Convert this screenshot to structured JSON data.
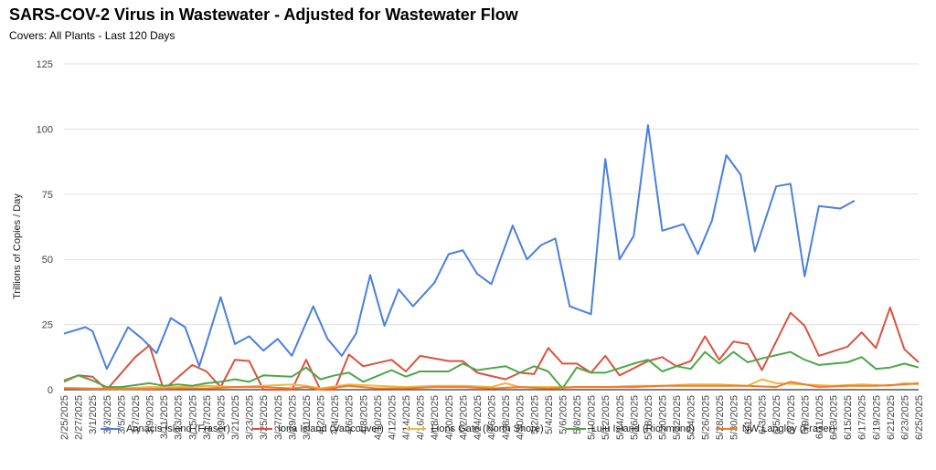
{
  "header": {
    "title": "SARS-COV-2 Virus in Wastewater - Adjusted for Wastewater Flow",
    "subtitle": "Covers: All Plants - Last 120 Days"
  },
  "chart_data": {
    "type": "line",
    "ylabel": "Trillions of Copies / Day",
    "ylim": [
      0,
      125
    ],
    "yticks": [
      0,
      25,
      50,
      75,
      100,
      125
    ],
    "grid": "horizontal",
    "legend_position": "bottom",
    "x": [
      "2/25/2025",
      "2/27/2025",
      "3/1/2025",
      "3/3/2025",
      "3/5/2025",
      "3/7/2025",
      "3/9/2025",
      "3/11/2025",
      "3/13/2025",
      "3/15/2025",
      "3/17/2025",
      "3/19/2025",
      "3/21/2025",
      "3/23/2025",
      "3/25/2025",
      "3/27/2025",
      "3/29/2025",
      "3/31/2025",
      "4/2/2025",
      "4/4/2025",
      "4/6/2025",
      "4/8/2025",
      "4/10/2025",
      "4/12/2025",
      "4/14/2025",
      "4/16/2025",
      "4/18/2025",
      "4/20/2025",
      "4/22/2025",
      "4/24/2025",
      "4/26/2025",
      "4/28/2025",
      "4/30/2025",
      "5/2/2025",
      "5/4/2025",
      "5/6/2025",
      "5/8/2025",
      "5/10/2025",
      "5/12/2025",
      "5/14/2025",
      "5/16/2025",
      "5/18/2025",
      "5/20/2025",
      "5/22/2025",
      "5/24/2025",
      "5/26/2025",
      "5/28/2025",
      "5/30/2025",
      "6/1/2025",
      "6/3/2025",
      "6/5/2025",
      "6/7/2025",
      "6/9/2025",
      "6/11/2025",
      "6/13/2025",
      "6/15/2025",
      "6/17/2025",
      "6/19/2025",
      "6/21/2025",
      "6/23/2025",
      "6/25/2025"
    ],
    "series": [
      {
        "name": "Annacis Island (Fraser)",
        "color": "#4a7fe0",
        "points": [
          [
            "2/25/2025",
            21.5
          ],
          [
            "2/28/2025",
            24
          ],
          [
            "3/1/2025",
            22.5
          ],
          [
            "3/3/2025",
            8
          ],
          [
            "3/6/2025",
            24
          ],
          [
            "3/8/2025",
            19.5
          ],
          [
            "3/10/2025",
            14
          ],
          [
            "3/12/2025",
            27.5
          ],
          [
            "3/14/2025",
            24
          ],
          [
            "3/16/2025",
            9
          ],
          [
            "3/19/2025",
            35.5
          ],
          [
            "3/21/2025",
            17.5
          ],
          [
            "3/23/2025",
            20.5
          ],
          [
            "3/25/2025",
            15
          ],
          [
            "3/27/2025",
            19.5
          ],
          [
            "3/29/2025",
            13
          ],
          [
            "4/1/2025",
            32
          ],
          [
            "4/3/2025",
            19.5
          ],
          [
            "4/5/2025",
            13
          ],
          [
            "4/7/2025",
            21.5
          ],
          [
            "4/9/2025",
            44
          ],
          [
            "4/11/2025",
            24.5
          ],
          [
            "4/13/2025",
            38.5
          ],
          [
            "4/15/2025",
            32
          ],
          [
            "4/18/2025",
            41
          ],
          [
            "4/20/2025",
            52
          ],
          [
            "4/22/2025",
            53.5
          ],
          [
            "4/24/2025",
            44.5
          ],
          [
            "4/26/2025",
            40.5
          ],
          [
            "4/29/2025",
            63
          ],
          [
            "5/1/2025",
            50
          ],
          [
            "5/3/2025",
            55.5
          ],
          [
            "5/5/2025",
            58
          ],
          [
            "5/7/2025",
            32
          ],
          [
            "5/10/2025",
            29
          ],
          [
            "5/12/2025",
            88.5
          ],
          [
            "5/14/2025",
            50
          ],
          [
            "5/16/2025",
            59
          ],
          [
            "5/18/2025",
            101.5
          ],
          [
            "5/20/2025",
            61
          ],
          [
            "5/23/2025",
            63.5
          ],
          [
            "5/25/2025",
            52
          ],
          [
            "5/27/2025",
            65
          ],
          [
            "5/29/2025",
            90
          ],
          [
            "5/31/2025",
            82.5
          ],
          [
            "6/2/2025",
            53
          ],
          [
            "6/5/2025",
            78
          ],
          [
            "6/7/2025",
            79
          ],
          [
            "6/9/2025",
            43.5
          ],
          [
            "6/11/2025",
            70.5
          ],
          [
            "6/14/2025",
            69.5
          ],
          [
            "6/16/2025",
            72.5
          ]
        ]
      },
      {
        "name": "Iona Island (Vancouver)",
        "color": "#d9533f",
        "points": [
          [
            "2/25/2025",
            3.5
          ],
          [
            "2/27/2025",
            5.5
          ],
          [
            "3/1/2025",
            5
          ],
          [
            "3/3/2025",
            0
          ],
          [
            "3/7/2025",
            12.5
          ],
          [
            "3/9/2025",
            17
          ],
          [
            "3/11/2025",
            0
          ],
          [
            "3/15/2025",
            9.5
          ],
          [
            "3/17/2025",
            7
          ],
          [
            "3/19/2025",
            1
          ],
          [
            "3/21/2025",
            11.5
          ],
          [
            "3/23/2025",
            11
          ],
          [
            "3/25/2025",
            0
          ],
          [
            "3/29/2025",
            0
          ],
          [
            "3/31/2025",
            11.5
          ],
          [
            "4/2/2025",
            0
          ],
          [
            "4/4/2025",
            0
          ],
          [
            "4/6/2025",
            13.5
          ],
          [
            "4/8/2025",
            9
          ],
          [
            "4/12/2025",
            11.5
          ],
          [
            "4/14/2025",
            7
          ],
          [
            "4/16/2025",
            13
          ],
          [
            "4/20/2025",
            11
          ],
          [
            "4/22/2025",
            11
          ],
          [
            "4/24/2025",
            6.5
          ],
          [
            "4/28/2025",
            4
          ],
          [
            "4/30/2025",
            6.5
          ],
          [
            "5/2/2025",
            6
          ],
          [
            "5/4/2025",
            16
          ],
          [
            "5/6/2025",
            10
          ],
          [
            "5/8/2025",
            10
          ],
          [
            "5/10/2025",
            6.5
          ],
          [
            "5/12/2025",
            13
          ],
          [
            "5/14/2025",
            5.5
          ],
          [
            "5/18/2025",
            11
          ],
          [
            "5/20/2025",
            12.5
          ],
          [
            "5/22/2025",
            9
          ],
          [
            "5/24/2025",
            11
          ],
          [
            "5/26/2025",
            20.5
          ],
          [
            "5/28/2025",
            11.5
          ],
          [
            "5/30/2025",
            18.5
          ],
          [
            "6/1/2025",
            17.5
          ],
          [
            "6/3/2025",
            7.5
          ],
          [
            "6/7/2025",
            29.5
          ],
          [
            "6/9/2025",
            24.5
          ],
          [
            "6/11/2025",
            13
          ],
          [
            "6/15/2025",
            16.5
          ],
          [
            "6/17/2025",
            22
          ],
          [
            "6/19/2025",
            16
          ],
          [
            "6/21/2025",
            31.5
          ],
          [
            "6/23/2025",
            15.5
          ],
          [
            "6/25/2025",
            10.5
          ]
        ]
      },
      {
        "name": "Lions Gate (North Shore)",
        "color": "#f2b63c",
        "points": [
          [
            "2/25/2025",
            0.8
          ],
          [
            "3/1/2025",
            0.5
          ],
          [
            "3/5/2025",
            0.5
          ],
          [
            "3/9/2025",
            1
          ],
          [
            "3/13/2025",
            1
          ],
          [
            "3/17/2025",
            1.5
          ],
          [
            "3/21/2025",
            1
          ],
          [
            "3/25/2025",
            1.5
          ],
          [
            "3/29/2025",
            2
          ],
          [
            "3/31/2025",
            1.5
          ],
          [
            "4/2/2025",
            0.5
          ],
          [
            "4/6/2025",
            2
          ],
          [
            "4/10/2025",
            1.5
          ],
          [
            "4/14/2025",
            1
          ],
          [
            "4/18/2025",
            1.5
          ],
          [
            "4/22/2025",
            1.5
          ],
          [
            "4/26/2025",
            1
          ],
          [
            "4/28/2025",
            2.5
          ],
          [
            "4/30/2025",
            1
          ],
          [
            "5/4/2025",
            1
          ],
          [
            "5/8/2025",
            1
          ],
          [
            "5/12/2025",
            1
          ],
          [
            "5/16/2025",
            1.5
          ],
          [
            "5/20/2025",
            1.5
          ],
          [
            "5/24/2025",
            2
          ],
          [
            "5/28/2025",
            2
          ],
          [
            "6/1/2025",
            1.5
          ],
          [
            "6/3/2025",
            4
          ],
          [
            "6/5/2025",
            2.5
          ],
          [
            "6/9/2025",
            2
          ],
          [
            "6/13/2025",
            1.5
          ],
          [
            "6/17/2025",
            2
          ],
          [
            "6/21/2025",
            1.5
          ],
          [
            "6/23/2025",
            2.5
          ],
          [
            "6/25/2025",
            2
          ]
        ]
      },
      {
        "name": "Lulu Island (Richmond)",
        "color": "#4ea64a",
        "points": [
          [
            "2/25/2025",
            3
          ],
          [
            "2/27/2025",
            5.5
          ],
          [
            "3/1/2025",
            3.5
          ],
          [
            "3/3/2025",
            1
          ],
          [
            "3/5/2025",
            1
          ],
          [
            "3/9/2025",
            2.5
          ],
          [
            "3/11/2025",
            1.5
          ],
          [
            "3/13/2025",
            2
          ],
          [
            "3/15/2025",
            1.5
          ],
          [
            "3/17/2025",
            2.5
          ],
          [
            "3/19/2025",
            3
          ],
          [
            "3/21/2025",
            4
          ],
          [
            "3/23/2025",
            3
          ],
          [
            "3/25/2025",
            5.5
          ],
          [
            "3/29/2025",
            5
          ],
          [
            "3/31/2025",
            8.5
          ],
          [
            "4/2/2025",
            4
          ],
          [
            "4/4/2025",
            5.5
          ],
          [
            "4/6/2025",
            6.5
          ],
          [
            "4/8/2025",
            3
          ],
          [
            "4/12/2025",
            7.5
          ],
          [
            "4/14/2025",
            5
          ],
          [
            "4/16/2025",
            7
          ],
          [
            "4/20/2025",
            7
          ],
          [
            "4/22/2025",
            10
          ],
          [
            "4/24/2025",
            7.5
          ],
          [
            "4/28/2025",
            9
          ],
          [
            "4/30/2025",
            6.5
          ],
          [
            "5/2/2025",
            9
          ],
          [
            "5/4/2025",
            7
          ],
          [
            "5/6/2025",
            0.5
          ],
          [
            "5/8/2025",
            8.5
          ],
          [
            "5/10/2025",
            6.5
          ],
          [
            "5/12/2025",
            6.5
          ],
          [
            "5/16/2025",
            10
          ],
          [
            "5/18/2025",
            11.5
          ],
          [
            "5/20/2025",
            7
          ],
          [
            "5/22/2025",
            9
          ],
          [
            "5/24/2025",
            8
          ],
          [
            "5/26/2025",
            14.5
          ],
          [
            "5/28/2025",
            10
          ],
          [
            "5/30/2025",
            14.5
          ],
          [
            "6/1/2025",
            10.5
          ],
          [
            "6/3/2025",
            12
          ],
          [
            "6/7/2025",
            14.5
          ],
          [
            "6/9/2025",
            11.5
          ],
          [
            "6/11/2025",
            9.5
          ],
          [
            "6/15/2025",
            10.5
          ],
          [
            "6/17/2025",
            12.5
          ],
          [
            "6/19/2025",
            8
          ],
          [
            "6/21/2025",
            8.5
          ],
          [
            "6/23/2025",
            10
          ],
          [
            "6/25/2025",
            8.5
          ]
        ]
      },
      {
        "name": "NW Langley (Fraser)",
        "color": "#f07a2d",
        "points": [
          [
            "2/25/2025",
            0.5
          ],
          [
            "3/1/2025",
            0.3
          ],
          [
            "3/5/2025",
            0.2
          ],
          [
            "3/9/2025",
            0.3
          ],
          [
            "3/13/2025",
            0.5
          ],
          [
            "3/17/2025",
            0.5
          ],
          [
            "3/21/2025",
            1
          ],
          [
            "3/25/2025",
            1
          ],
          [
            "3/29/2025",
            0.5
          ],
          [
            "3/31/2025",
            1
          ],
          [
            "4/2/2025",
            0
          ],
          [
            "4/6/2025",
            1.5
          ],
          [
            "4/10/2025",
            0.5
          ],
          [
            "4/14/2025",
            0.5
          ],
          [
            "4/18/2025",
            1
          ],
          [
            "4/22/2025",
            1
          ],
          [
            "4/26/2025",
            0.5
          ],
          [
            "4/30/2025",
            1
          ],
          [
            "5/4/2025",
            0.5
          ],
          [
            "5/8/2025",
            1
          ],
          [
            "5/12/2025",
            1
          ],
          [
            "5/16/2025",
            1
          ],
          [
            "5/20/2025",
            1.5
          ],
          [
            "5/24/2025",
            1.5
          ],
          [
            "5/28/2025",
            1.5
          ],
          [
            "6/1/2025",
            1.5
          ],
          [
            "6/5/2025",
            1
          ],
          [
            "6/7/2025",
            3
          ],
          [
            "6/11/2025",
            1
          ],
          [
            "6/15/2025",
            1.5
          ],
          [
            "6/19/2025",
            1.5
          ],
          [
            "6/23/2025",
            2
          ],
          [
            "6/25/2025",
            2.5
          ]
        ]
      }
    ]
  }
}
